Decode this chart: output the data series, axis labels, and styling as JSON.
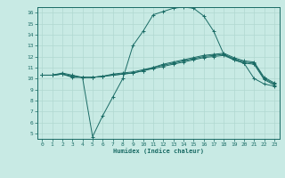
{
  "xlabel": "Humidex (Indice chaleur)",
  "xlim": [
    -0.5,
    23.5
  ],
  "ylim": [
    4.5,
    16.5
  ],
  "xticks": [
    0,
    1,
    2,
    3,
    4,
    5,
    6,
    7,
    8,
    9,
    10,
    11,
    12,
    13,
    14,
    15,
    16,
    17,
    18,
    19,
    20,
    21,
    22,
    23
  ],
  "yticks": [
    5,
    6,
    7,
    8,
    9,
    10,
    11,
    12,
    13,
    14,
    15,
    16
  ],
  "bg_color": "#c8eae4",
  "line_color": "#1a6b65",
  "grid_color": "#b0d8d0",
  "lines": [
    {
      "x": [
        0,
        1,
        2,
        3,
        4,
        5,
        6,
        7,
        8,
        9,
        10,
        11,
        12,
        13,
        14,
        15,
        16,
        17,
        18,
        19,
        20,
        21,
        22,
        23
      ],
      "y": [
        10.3,
        10.3,
        10.5,
        10.3,
        10.1,
        4.7,
        6.6,
        8.3,
        10.0,
        13.0,
        14.3,
        15.8,
        16.1,
        16.4,
        16.5,
        16.4,
        15.7,
        14.3,
        12.2,
        11.7,
        11.4,
        10.0,
        9.5,
        9.3
      ]
    },
    {
      "x": [
        0,
        1,
        2,
        3,
        4,
        5,
        6,
        7,
        8,
        9,
        10,
        11,
        12,
        13,
        14,
        15,
        16,
        17,
        18,
        19,
        20,
        21,
        22,
        23
      ],
      "y": [
        10.3,
        10.3,
        10.4,
        10.1,
        10.1,
        10.1,
        10.2,
        10.3,
        10.4,
        10.5,
        10.7,
        11.0,
        11.2,
        11.4,
        11.6,
        11.8,
        12.0,
        12.1,
        12.2,
        11.8,
        11.5,
        11.4,
        10.0,
        9.5
      ]
    },
    {
      "x": [
        0,
        1,
        2,
        3,
        4,
        5,
        6,
        7,
        8,
        9,
        10,
        11,
        12,
        13,
        14,
        15,
        16,
        17,
        18,
        19,
        20,
        21,
        22,
        23
      ],
      "y": [
        10.3,
        10.3,
        10.4,
        10.2,
        10.1,
        10.1,
        10.2,
        10.4,
        10.5,
        10.6,
        10.8,
        11.0,
        11.3,
        11.5,
        11.7,
        11.9,
        12.1,
        12.2,
        12.3,
        11.9,
        11.6,
        11.5,
        10.1,
        9.6
      ]
    },
    {
      "x": [
        0,
        1,
        2,
        3,
        4,
        5,
        6,
        7,
        8,
        9,
        10,
        11,
        12,
        13,
        14,
        15,
        16,
        17,
        18,
        19,
        20,
        21,
        22,
        23
      ],
      "y": [
        10.3,
        10.3,
        10.4,
        10.2,
        10.1,
        10.1,
        10.2,
        10.3,
        10.4,
        10.5,
        10.7,
        10.9,
        11.1,
        11.3,
        11.5,
        11.7,
        11.9,
        12.0,
        12.1,
        11.7,
        11.4,
        11.3,
        9.9,
        9.4
      ]
    }
  ],
  "figsize": [
    3.2,
    2.0
  ],
  "dpi": 100
}
